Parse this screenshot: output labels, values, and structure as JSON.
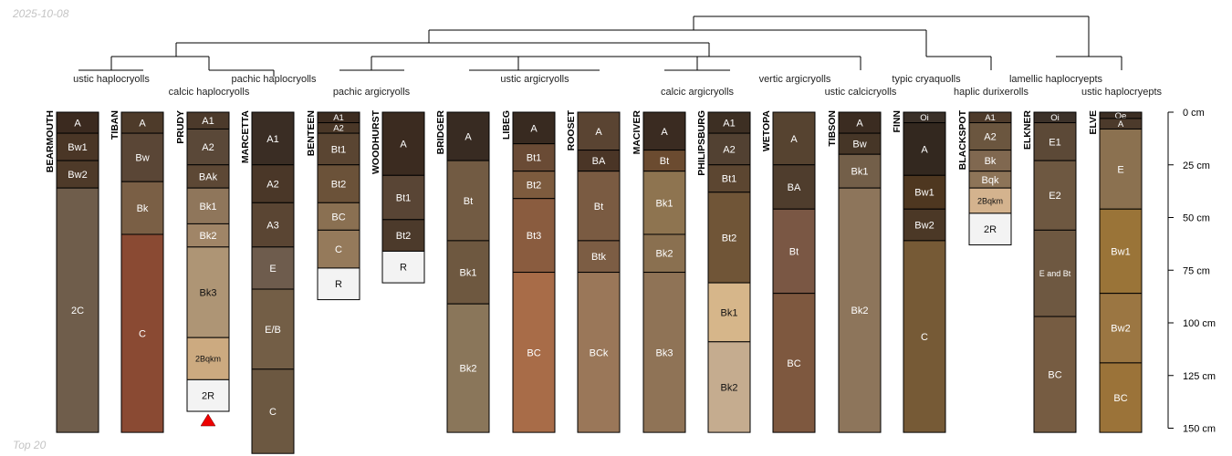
{
  "header": {
    "date": "2025-10-08"
  },
  "footer": {
    "label": "Top 20"
  },
  "colors": {
    "line": "#000000",
    "marker": "#ee0000",
    "text_dark": "#ffffff",
    "text_light": "#111111"
  },
  "depth_axis": {
    "unit": "cm",
    "ticks": [
      {
        "value": 0,
        "label": "0 cm"
      },
      {
        "value": 25,
        "label": "25 cm"
      },
      {
        "value": 50,
        "label": "50 cm"
      },
      {
        "value": 75,
        "label": "75 cm"
      },
      {
        "value": 100,
        "label": "100 cm"
      },
      {
        "value": 125,
        "label": "125 cm"
      },
      {
        "value": 150,
        "label": "150 cm"
      }
    ]
  },
  "taxa": [
    {
      "label": "ustic haplocryolls"
    },
    {
      "label": "calcic haplocryolls"
    },
    {
      "label": "pachic haplocryolls"
    },
    {
      "label": "pachic argicryolls"
    },
    {
      "label": "ustic argicryolls"
    },
    {
      "label": "calcic argicryolls"
    },
    {
      "label": "vertic argicryolls"
    },
    {
      "label": "ustic calcicryolls"
    },
    {
      "label": "typic cryaquolls"
    },
    {
      "label": "haplic durixerolls"
    },
    {
      "label": "lamellic haplocryepts"
    },
    {
      "label": "ustic haplocryepts"
    }
  ],
  "profiles": [
    {
      "name": "BEARMOUTH",
      "horizons": [
        {
          "name": "A",
          "top": 0,
          "bottom": 10,
          "color": "#3b2a1f"
        },
        {
          "name": "Bw1",
          "top": 10,
          "bottom": 23,
          "color": "#4a3626"
        },
        {
          "name": "Bw2",
          "top": 23,
          "bottom": 36,
          "color": "#4e3a29"
        },
        {
          "name": "2C",
          "top": 36,
          "bottom": 152,
          "color": "#6f5d4b"
        }
      ]
    },
    {
      "name": "TIBAN",
      "horizons": [
        {
          "name": "A",
          "top": 0,
          "bottom": 10,
          "color": "#4e3b2a"
        },
        {
          "name": "Bw",
          "top": 10,
          "bottom": 33,
          "color": "#5a4636"
        },
        {
          "name": "Bk",
          "top": 33,
          "bottom": 58,
          "color": "#7a5f45"
        },
        {
          "name": "C",
          "top": 58,
          "bottom": 152,
          "color": "#8a4a33"
        }
      ]
    },
    {
      "name": "PRUDY",
      "horizons": [
        {
          "name": "A1",
          "top": 0,
          "bottom": 8,
          "color": "#4c3a2b"
        },
        {
          "name": "A2",
          "top": 8,
          "bottom": 25,
          "color": "#5a4838"
        },
        {
          "name": "BAk",
          "top": 25,
          "bottom": 36,
          "color": "#5d4835"
        },
        {
          "name": "Bk1",
          "top": 36,
          "bottom": 53,
          "color": "#8f765b"
        },
        {
          "name": "Bk2",
          "top": 53,
          "bottom": 64,
          "color": "#a08567"
        },
        {
          "name": "Bk3",
          "top": 64,
          "bottom": 107,
          "color": "#ae9575"
        },
        {
          "name": "2Bqkm",
          "top": 107,
          "bottom": 127,
          "color": "#ccaa80"
        },
        {
          "name": "2R",
          "top": 127,
          "bottom": 142,
          "color": "#f3f3f3"
        }
      ]
    },
    {
      "name": "MARCETTA",
      "horizons": [
        {
          "name": "A1",
          "top": 0,
          "bottom": 25,
          "color": "#3a2d24"
        },
        {
          "name": "A2",
          "top": 25,
          "bottom": 43,
          "color": "#4a3728"
        },
        {
          "name": "A3",
          "top": 43,
          "bottom": 64,
          "color": "#5a4533"
        },
        {
          "name": "E",
          "top": 64,
          "bottom": 84,
          "color": "#6e5c4d"
        },
        {
          "name": "E/B",
          "top": 84,
          "bottom": 122,
          "color": "#735e46"
        },
        {
          "name": "C",
          "top": 122,
          "bottom": 162,
          "color": "#6c5841"
        }
      ]
    },
    {
      "name": "BENTEEN",
      "horizons": [
        {
          "name": "A1",
          "top": 0,
          "bottom": 5,
          "color": "#3d2c20"
        },
        {
          "name": "A2",
          "top": 5,
          "bottom": 10,
          "color": "#4a3727"
        },
        {
          "name": "Bt1",
          "top": 10,
          "bottom": 25,
          "color": "#5a4532"
        },
        {
          "name": "Bt2",
          "top": 25,
          "bottom": 43,
          "color": "#6b5239"
        },
        {
          "name": "BC",
          "top": 43,
          "bottom": 56,
          "color": "#8a7052"
        },
        {
          "name": "C",
          "top": 56,
          "bottom": 74,
          "color": "#957a5b"
        },
        {
          "name": "R",
          "top": 74,
          "bottom": 89,
          "color": "#f3f3f3"
        }
      ]
    },
    {
      "name": "WOODHURST",
      "horizons": [
        {
          "name": "A",
          "top": 0,
          "bottom": 30,
          "color": "#3b2b20"
        },
        {
          "name": "Bt1",
          "top": 30,
          "bottom": 51,
          "color": "#594535"
        },
        {
          "name": "Bt2",
          "top": 51,
          "bottom": 66,
          "color": "#4c3a2b"
        },
        {
          "name": "R",
          "top": 66,
          "bottom": 81,
          "color": "#f3f3f3"
        }
      ]
    },
    {
      "name": "BRIDGER",
      "horizons": [
        {
          "name": "A",
          "top": 0,
          "bottom": 23,
          "color": "#382b22"
        },
        {
          "name": "Bt",
          "top": 23,
          "bottom": 61,
          "color": "#725b43"
        },
        {
          "name": "Bk1",
          "top": 61,
          "bottom": 91,
          "color": "#6e5840"
        },
        {
          "name": "Bk2",
          "top": 91,
          "bottom": 152,
          "color": "#8a765a"
        }
      ]
    },
    {
      "name": "LIBEG",
      "horizons": [
        {
          "name": "A",
          "top": 0,
          "bottom": 15,
          "color": "#382a20"
        },
        {
          "name": "Bt1",
          "top": 15,
          "bottom": 28,
          "color": "#6a4b35"
        },
        {
          "name": "Bt2",
          "top": 28,
          "bottom": 41,
          "color": "#7d5b3e"
        },
        {
          "name": "Bt3",
          "top": 41,
          "bottom": 76,
          "color": "#8a5c3f"
        },
        {
          "name": "BC",
          "top": 76,
          "bottom": 152,
          "color": "#a86c48"
        }
      ]
    },
    {
      "name": "ROOSET",
      "horizons": [
        {
          "name": "A",
          "top": 0,
          "bottom": 18,
          "color": "#5a4432"
        },
        {
          "name": "BA",
          "top": 18,
          "bottom": 28,
          "color": "#4a3526"
        },
        {
          "name": "Bt",
          "top": 28,
          "bottom": 61,
          "color": "#7a5b42"
        },
        {
          "name": "Btk",
          "top": 61,
          "bottom": 76,
          "color": "#7c5d44"
        },
        {
          "name": "BCk",
          "top": 76,
          "bottom": 152,
          "color": "#9a7759"
        }
      ]
    },
    {
      "name": "MACIVER",
      "horizons": [
        {
          "name": "A",
          "top": 0,
          "bottom": 18,
          "color": "#3a2b21"
        },
        {
          "name": "Bt",
          "top": 18,
          "bottom": 28,
          "color": "#6b4b30"
        },
        {
          "name": "Bk1",
          "top": 28,
          "bottom": 58,
          "color": "#8e7450"
        },
        {
          "name": "Bk2",
          "top": 58,
          "bottom": 76,
          "color": "#8a7050"
        },
        {
          "name": "Bk3",
          "top": 76,
          "bottom": 152,
          "color": "#8f7356"
        }
      ]
    },
    {
      "name": "PHILIPSBURG",
      "horizons": [
        {
          "name": "A1",
          "top": 0,
          "bottom": 10,
          "color": "#3d2f23"
        },
        {
          "name": "A2",
          "top": 10,
          "bottom": 25,
          "color": "#524132"
        },
        {
          "name": "Bt1",
          "top": 25,
          "bottom": 38,
          "color": "#5c4631"
        },
        {
          "name": "Bt2",
          "top": 38,
          "bottom": 81,
          "color": "#705537"
        },
        {
          "name": "Bk1",
          "top": 81,
          "bottom": 109,
          "color": "#d6b68a"
        },
        {
          "name": "Bk2",
          "top": 109,
          "bottom": 152,
          "color": "#c5ac8f"
        }
      ]
    },
    {
      "name": "WETOPA",
      "horizons": [
        {
          "name": "A",
          "top": 0,
          "bottom": 25,
          "color": "#564330"
        },
        {
          "name": "BA",
          "top": 25,
          "bottom": 46,
          "color": "#4f3d2d"
        },
        {
          "name": "Bt",
          "top": 46,
          "bottom": 86,
          "color": "#7a5744"
        },
        {
          "name": "BC",
          "top": 86,
          "bottom": 152,
          "color": "#7e583f"
        }
      ]
    },
    {
      "name": "TIBSON",
      "horizons": [
        {
          "name": "A",
          "top": 0,
          "bottom": 10,
          "color": "#3b2c21"
        },
        {
          "name": "Bw",
          "top": 10,
          "bottom": 20,
          "color": "#463627"
        },
        {
          "name": "Bk1",
          "top": 20,
          "bottom": 36,
          "color": "#735f49"
        },
        {
          "name": "Bk2",
          "top": 36,
          "bottom": 152,
          "color": "#8d755b"
        }
      ]
    },
    {
      "name": "FINN",
      "horizons": [
        {
          "name": "Oi",
          "top": 0,
          "bottom": 5,
          "color": "#3a3028"
        },
        {
          "name": "A",
          "top": 5,
          "bottom": 30,
          "color": "#33281f"
        },
        {
          "name": "Bw1",
          "top": 30,
          "bottom": 46,
          "color": "#4e3720"
        },
        {
          "name": "Bw2",
          "top": 46,
          "bottom": 61,
          "color": "#4b3826"
        },
        {
          "name": "C",
          "top": 61,
          "bottom": 152,
          "color": "#765a36"
        }
      ]
    },
    {
      "name": "BLACKSPOT",
      "horizons": [
        {
          "name": "A1",
          "top": 0,
          "bottom": 5,
          "color": "#4e3b2b"
        },
        {
          "name": "A2",
          "top": 5,
          "bottom": 18,
          "color": "#6b563f"
        },
        {
          "name": "Bk",
          "top": 18,
          "bottom": 28,
          "color": "#806850"
        },
        {
          "name": "Bqk",
          "top": 28,
          "bottom": 36,
          "color": "#8d7458"
        },
        {
          "name": "2Bqkm",
          "top": 36,
          "bottom": 48,
          "color": "#d4b38e"
        },
        {
          "name": "2R",
          "top": 48,
          "bottom": 63,
          "color": "#f3f3f3"
        }
      ]
    },
    {
      "name": "ELKNER",
      "horizons": [
        {
          "name": "Oi",
          "top": 0,
          "bottom": 5,
          "color": "#3c3129"
        },
        {
          "name": "E1",
          "top": 5,
          "bottom": 23,
          "color": "#5c4937"
        },
        {
          "name": "E2",
          "top": 23,
          "bottom": 56,
          "color": "#6e5841"
        },
        {
          "name": "E and Bt",
          "top": 56,
          "bottom": 97,
          "color": "#6e5841"
        },
        {
          "name": "BC",
          "top": 97,
          "bottom": 152,
          "color": "#765c42"
        }
      ]
    },
    {
      "name": "ELVE",
      "horizons": [
        {
          "name": "Oe",
          "top": 0,
          "bottom": 3,
          "color": "#3c2e23"
        },
        {
          "name": "A",
          "top": 3,
          "bottom": 8,
          "color": "#4c3a2b"
        },
        {
          "name": "E",
          "top": 8,
          "bottom": 46,
          "color": "#8b7150"
        },
        {
          "name": "Bw1",
          "top": 46,
          "bottom": 86,
          "color": "#9a7438"
        },
        {
          "name": "Bw2",
          "top": 86,
          "bottom": 119,
          "color": "#9b7642"
        },
        {
          "name": "BC",
          "top": 119,
          "bottom": 152,
          "color": "#9b7339"
        }
      ]
    }
  ],
  "truncated_profiles": [
    "PRUDY"
  ]
}
